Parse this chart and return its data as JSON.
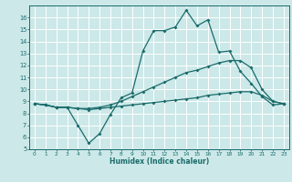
{
  "xlabel": "Humidex (Indice chaleur)",
  "bg_color": "#cce8e8",
  "line_color": "#1a6b6b",
  "grid_color": "#ffffff",
  "xlim": [
    -0.5,
    23.5
  ],
  "ylim": [
    5,
    17
  ],
  "xticks": [
    0,
    1,
    2,
    3,
    4,
    5,
    6,
    7,
    8,
    9,
    10,
    11,
    12,
    13,
    14,
    15,
    16,
    17,
    18,
    19,
    20,
    21,
    22,
    23
  ],
  "yticks": [
    5,
    6,
    7,
    8,
    9,
    10,
    11,
    12,
    13,
    14,
    15,
    16
  ],
  "line1_x": [
    0,
    1,
    2,
    3,
    4,
    5,
    6,
    7,
    8,
    9,
    10,
    11,
    12,
    13,
    14,
    15,
    16,
    17,
    18,
    19,
    20,
    21,
    22,
    23
  ],
  "line1_y": [
    8.8,
    8.7,
    8.5,
    8.5,
    7.0,
    5.5,
    6.3,
    7.9,
    9.3,
    9.7,
    13.2,
    14.9,
    14.9,
    15.2,
    16.6,
    15.3,
    15.8,
    13.1,
    13.2,
    11.5,
    10.5,
    9.4,
    8.7,
    8.8
  ],
  "line2_x": [
    0,
    1,
    2,
    3,
    4,
    5,
    6,
    7,
    8,
    9,
    10,
    11,
    12,
    13,
    14,
    15,
    16,
    17,
    18,
    19,
    20,
    21,
    22,
    23
  ],
  "line2_y": [
    8.8,
    8.7,
    8.5,
    8.5,
    8.4,
    8.4,
    8.5,
    8.7,
    9.0,
    9.4,
    9.8,
    10.2,
    10.6,
    11.0,
    11.4,
    11.6,
    11.9,
    12.2,
    12.4,
    12.4,
    11.8,
    10.0,
    9.0,
    8.8
  ],
  "line3_x": [
    0,
    1,
    2,
    3,
    4,
    5,
    6,
    7,
    8,
    9,
    10,
    11,
    12,
    13,
    14,
    15,
    16,
    17,
    18,
    19,
    20,
    21,
    22,
    23
  ],
  "line3_y": [
    8.8,
    8.7,
    8.5,
    8.5,
    8.4,
    8.3,
    8.4,
    8.5,
    8.6,
    8.7,
    8.8,
    8.9,
    9.0,
    9.1,
    9.2,
    9.3,
    9.5,
    9.6,
    9.7,
    9.8,
    9.8,
    9.5,
    9.0,
    8.8
  ]
}
